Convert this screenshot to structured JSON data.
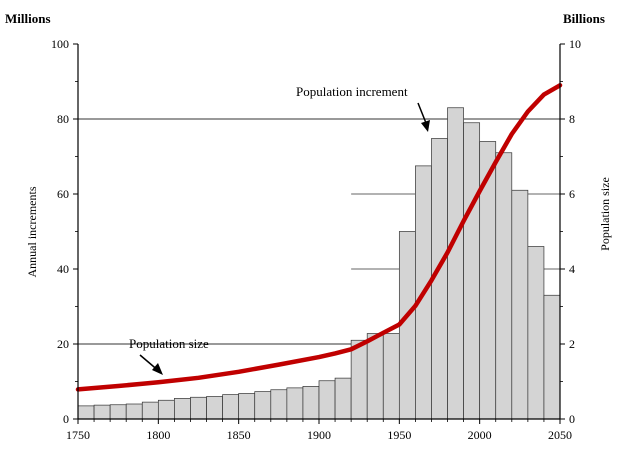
{
  "chart_data": {
    "type": "bar+line",
    "left_unit_label": "Millions",
    "right_unit_label": "Billions",
    "ylabel_left": "Annual increments",
    "ylabel_right": "Population size",
    "x_ticks": [
      "1750",
      "1800",
      "1850",
      "1900",
      "1950",
      "2000",
      "2050"
    ],
    "y_left_ticks": [
      "0",
      "20",
      "40",
      "60",
      "80",
      "100"
    ],
    "y_right_ticks": [
      "0",
      "2",
      "4",
      "6",
      "8",
      "10"
    ],
    "xlim": [
      1750,
      2050
    ],
    "ylim_left": [
      0,
      100
    ],
    "ylim_right": [
      0,
      10
    ],
    "bar_width_years": 10,
    "grid": "horizontal at 20, 80",
    "colors": {
      "bars": "#d4d4d4",
      "bar_edge": "#333333",
      "line": "#c00000",
      "axes": "#000000",
      "grid": "#333333"
    },
    "bars": {
      "name": "Population increment",
      "decades": [
        1750,
        1760,
        1770,
        1780,
        1790,
        1800,
        1810,
        1820,
        1830,
        1840,
        1850,
        1860,
        1870,
        1880,
        1890,
        1900,
        1910,
        1920,
        1930,
        1940,
        1950,
        1960,
        1970,
        1980,
        1990,
        2000,
        2010,
        2020,
        2030,
        2040
      ],
      "values": [
        3.5,
        3.7,
        3.8,
        4.0,
        4.5,
        5.0,
        5.5,
        5.8,
        6.0,
        6.5,
        6.8,
        7.3,
        7.8,
        8.3,
        8.7,
        10.2,
        10.9,
        21.0,
        22.8,
        22.8,
        50.0,
        67.5,
        74.8,
        83.0,
        79.0,
        74.0,
        71.0,
        61.0,
        46.0,
        33.0
      ]
    },
    "line": {
      "name": "Population size",
      "years": [
        1750,
        1775,
        1800,
        1825,
        1850,
        1875,
        1900,
        1910,
        1920,
        1930,
        1940,
        1950,
        1960,
        1970,
        1980,
        1990,
        2000,
        2010,
        2020,
        2030,
        2040,
        2050
      ],
      "values": [
        0.79,
        0.88,
        0.98,
        1.1,
        1.26,
        1.45,
        1.65,
        1.75,
        1.86,
        2.07,
        2.3,
        2.52,
        3.02,
        3.7,
        4.44,
        5.28,
        6.08,
        6.85,
        7.6,
        8.2,
        8.65,
        8.9
      ]
    },
    "annotations": [
      {
        "text": "Population increment",
        "points_to": "bar 1980"
      },
      {
        "text": "Population size",
        "points_to": "line near 1790"
      }
    ]
  }
}
